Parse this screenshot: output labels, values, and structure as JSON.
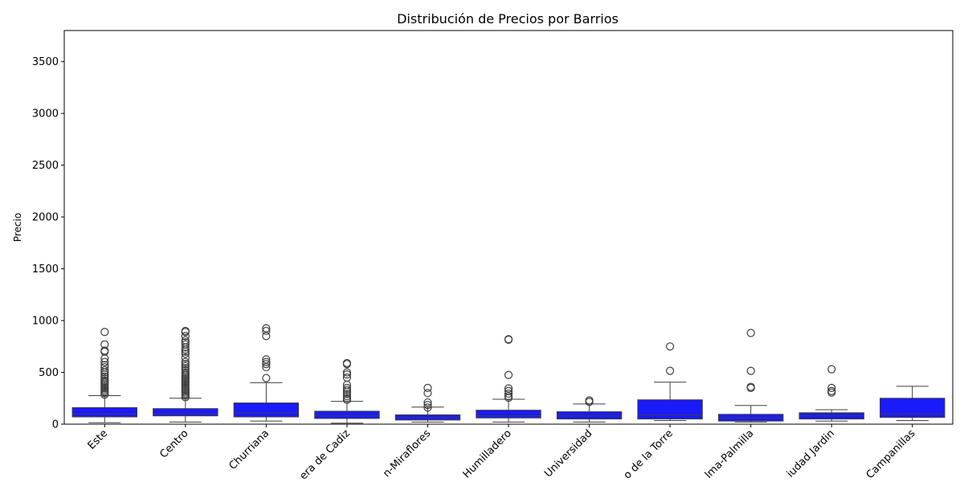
{
  "chart_data": {
    "type": "box",
    "title": "Distribución de Precios por Barrios",
    "xlabel": "",
    "ylabel": "Precio",
    "ylim": [
      0,
      3800
    ],
    "yticks": [
      0,
      500,
      1000,
      1500,
      2000,
      2500,
      3000,
      3500
    ],
    "grid": false,
    "legend": "none",
    "box_color": "#1a1aff",
    "edge_color": "#3f3f3f",
    "categories": [
      "Este",
      "Centro",
      "Churriana",
      "Carretera de Cadiz",
      "Ciudad Jardín-Miraflores",
      "Cruz De Humilladero",
      "Teatinos-Universidad",
      "Puerto de la Torre",
      "Palma-Palmilla",
      "Ciudad Jardin",
      "Campanillas"
    ],
    "tick_labels": [
      "Este",
      "Centro",
      "Churriana",
      "era de Cadiz",
      "n-Miraflores",
      "Humilladero",
      "Universidad",
      "o de la Torre",
      "lma-Palmilla",
      "iudad Jardin",
      "Campanillas"
    ],
    "boxes": [
      {
        "whisker_low": 15,
        "q1": 70,
        "median": 100,
        "q3": 160,
        "whisker_high": 275,
        "outliers": [
          285,
          300,
          315,
          330,
          345,
          360,
          375,
          390,
          405,
          420,
          440,
          460,
          480,
          500,
          520,
          550,
          570,
          600,
          635,
          700,
          710,
          770,
          890
        ]
      },
      {
        "whisker_low": 20,
        "q1": 80,
        "median": 100,
        "q3": 150,
        "whisker_high": 250,
        "outliers": [
          260,
          275,
          290,
          305,
          320,
          335,
          350,
          365,
          380,
          395,
          410,
          425,
          440,
          455,
          470,
          485,
          500,
          520,
          540,
          560,
          580,
          600,
          640,
          680,
          700,
          720,
          740,
          770,
          790,
          810,
          850,
          890,
          900
        ]
      },
      {
        "whisker_low": 30,
        "q1": 70,
        "median": 110,
        "q3": 205,
        "whisker_high": 400,
        "outliers": [
          445,
          550,
          580,
          600,
          625,
          850,
          900,
          925
        ]
      },
      {
        "whisker_low": 10,
        "q1": 55,
        "median": 80,
        "q3": 125,
        "whisker_high": 220,
        "outliers": [
          235,
          250,
          270,
          290,
          310,
          330,
          350,
          380,
          450,
          480,
          500,
          580,
          590
        ]
      },
      {
        "whisker_low": 20,
        "q1": 40,
        "median": 60,
        "q3": 90,
        "whisker_high": 165,
        "outliers": [
          160,
          185,
          210,
          300,
          350
        ]
      },
      {
        "whisker_low": 20,
        "q1": 60,
        "median": 80,
        "q3": 135,
        "whisker_high": 240,
        "outliers": [
          255,
          270,
          295,
          320,
          345,
          475,
          815,
          820
        ]
      },
      {
        "whisker_low": 20,
        "q1": 50,
        "median": 80,
        "q3": 120,
        "whisker_high": 195,
        "outliers": [
          215,
          230
        ]
      },
      {
        "whisker_low": 35,
        "q1": 50,
        "median": 90,
        "q3": 235,
        "whisker_high": 405,
        "outliers": [
          515,
          750
        ]
      },
      {
        "whisker_low": 20,
        "q1": 30,
        "median": 60,
        "q3": 95,
        "whisker_high": 180,
        "outliers": [
          350,
          360,
          515,
          880
        ]
      },
      {
        "whisker_low": 30,
        "q1": 50,
        "median": 80,
        "q3": 110,
        "whisker_high": 140,
        "outliers": [
          305,
          320,
          350,
          530
        ]
      },
      {
        "whisker_low": 35,
        "q1": 65,
        "median": 100,
        "q3": 250,
        "whisker_high": 365,
        "outliers": []
      }
    ]
  }
}
